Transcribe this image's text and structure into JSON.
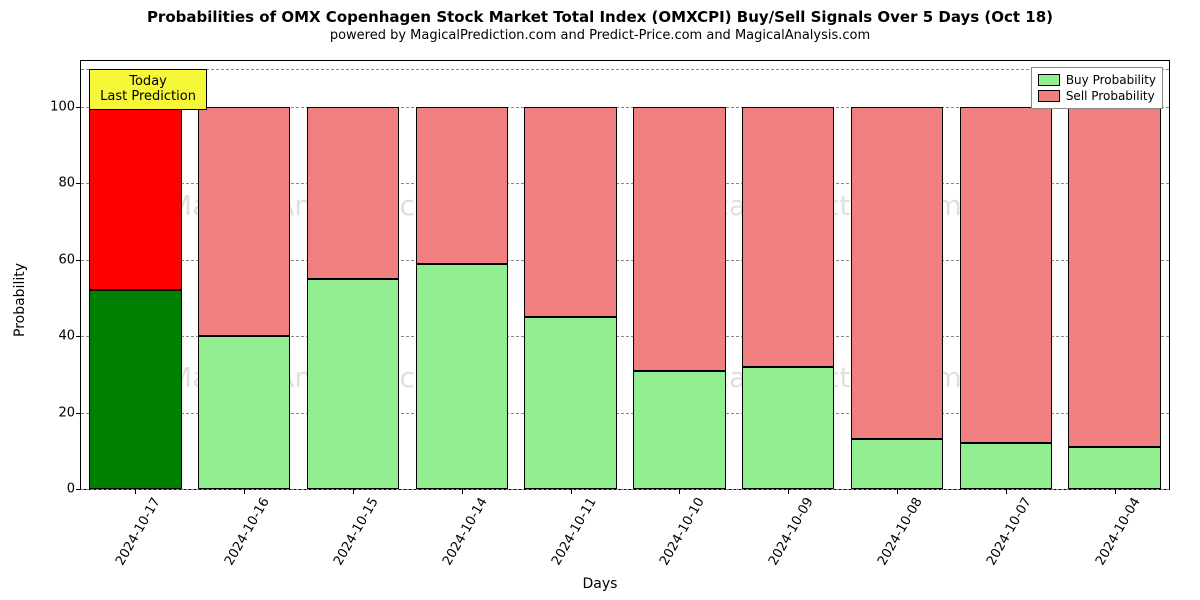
{
  "title": "Probabilities of OMX Copenhagen Stock Market Total Index (OMXCPI) Buy/Sell Signals Over 5 Days (Oct 18)",
  "subtitle": "powered by MagicalPrediction.com and Predict-Price.com and MagicalAnalysis.com",
  "title_fontsize": 15,
  "subtitle_fontsize": 13,
  "ylabel": "Probability",
  "xlabel": "Days",
  "background_color": "#ffffff",
  "grid_color": "#888888",
  "ylim": [
    0,
    112
  ],
  "ytick_step": 20,
  "yticks": [
    0,
    20,
    40,
    60,
    80,
    100
  ],
  "extra_grid_at": 110,
  "chart": {
    "type": "stacked-bar",
    "categories": [
      "2024-10-17",
      "2024-10-16",
      "2024-10-15",
      "2024-10-14",
      "2024-10-11",
      "2024-10-10",
      "2024-10-09",
      "2024-10-08",
      "2024-10-07",
      "2024-10-04"
    ],
    "buy_values": [
      52,
      40,
      55,
      59,
      45,
      31,
      32,
      13,
      12,
      11
    ],
    "sell_values": [
      48,
      60,
      45,
      41,
      55,
      69,
      68,
      87,
      88,
      89
    ],
    "bar_width": 0.85,
    "today_index": 0,
    "buy_color": "#90ee90",
    "sell_color": "#f08080",
    "buy_color_today": "#008000",
    "sell_color_today": "#ff0000",
    "border_color": "#000000"
  },
  "annotation": {
    "line1": "Today",
    "line2": "Last Prediction",
    "bg": "#f7f73a"
  },
  "legend": {
    "buy_label": "Buy Probability",
    "sell_label": "Sell Probability"
  },
  "watermark_text": "MagicalAnalysis.com   MagicalPrediction.com",
  "label_fontsize": 14,
  "tick_fontsize": 13
}
